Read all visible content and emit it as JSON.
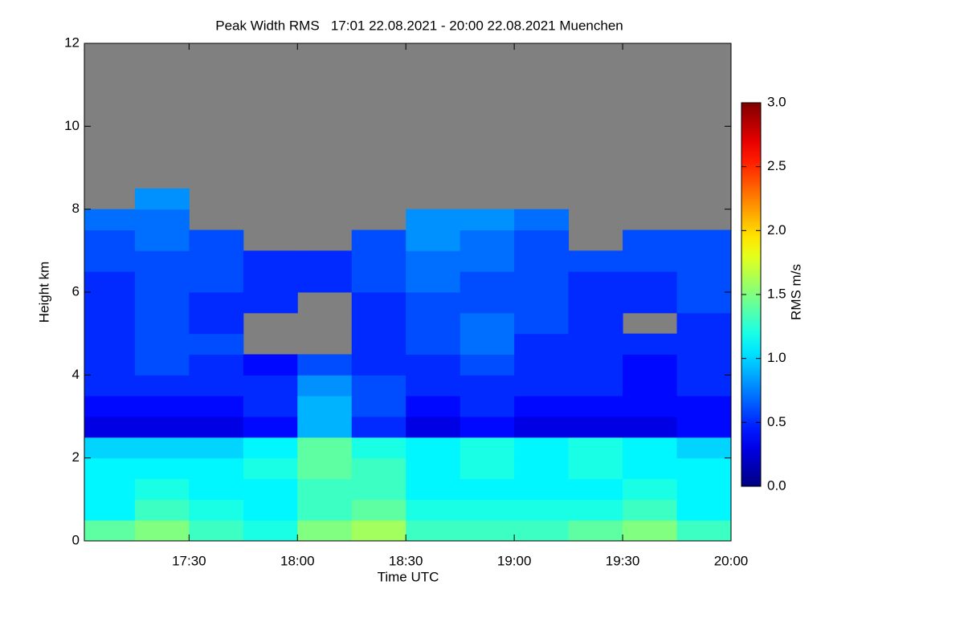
{
  "chart_data": {
    "type": "heatmap",
    "title": "Peak Width RMS   17:01 22.08.2021 - 20:00 22.08.2021 Muenchen",
    "xlabel": "Time UTC",
    "ylabel": "Height km",
    "colorbar_label": "RMS m/s",
    "colormap": "jet",
    "missing_color": "#808080",
    "xlim": [
      17.017,
      20.0
    ],
    "xticks": [
      {
        "value": 17.5,
        "label": "17:30"
      },
      {
        "value": 18.0,
        "label": "18:00"
      },
      {
        "value": 18.5,
        "label": "18:30"
      },
      {
        "value": 19.0,
        "label": "19:00"
      },
      {
        "value": 19.5,
        "label": "19:30"
      },
      {
        "value": 20.0,
        "label": "20:00"
      }
    ],
    "ylim": [
      0,
      12
    ],
    "yticks": [
      0,
      2,
      4,
      6,
      8,
      10,
      12
    ],
    "clim": [
      0,
      3
    ],
    "cticks": [
      {
        "value": 0,
        "label": "0.0"
      },
      0.5,
      {
        "value": 1,
        "label": "1.0"
      },
      1.5,
      {
        "value": 2,
        "label": "2.0"
      },
      2.5,
      {
        "value": 3,
        "label": "3.0"
      }
    ],
    "xbins": [
      17.017,
      17.25,
      17.5,
      17.75,
      18.0,
      18.25,
      18.5,
      18.75,
      19.0,
      19.25,
      19.5,
      19.75,
      20.0
    ],
    "ybins": [
      0,
      0.5,
      1,
      1.5,
      2,
      2.5,
      3,
      3.5,
      4,
      4.5,
      5,
      5.5,
      6,
      6.5,
      7,
      7.5,
      8,
      8.5,
      9,
      9.5,
      10,
      10.5,
      11,
      11.5,
      12
    ],
    "z": [
      [
        1.4,
        1.5,
        1.3,
        1.2,
        1.5,
        1.6,
        1.3,
        1.3,
        1.3,
        1.4,
        1.5,
        1.3
      ],
      [
        1.1,
        1.3,
        1.2,
        1.1,
        1.3,
        1.4,
        1.2,
        1.2,
        1.2,
        1.2,
        1.3,
        1.1
      ],
      [
        1.1,
        1.2,
        1.1,
        1.1,
        1.3,
        1.3,
        1.1,
        1.1,
        1.1,
        1.1,
        1.2,
        1.1
      ],
      [
        1.1,
        1.1,
        1.1,
        1.2,
        1.4,
        1.3,
        1.1,
        1.2,
        1.1,
        1.2,
        1.1,
        1.1
      ],
      [
        1.0,
        1.0,
        1.0,
        1.1,
        1.4,
        1.2,
        1.1,
        1.2,
        1.1,
        1.2,
        1.1,
        1.0
      ],
      [
        0.3,
        0.3,
        0.3,
        0.4,
        0.9,
        0.5,
        0.3,
        0.4,
        0.3,
        0.3,
        0.3,
        0.4
      ],
      [
        0.4,
        0.4,
        0.4,
        0.5,
        0.9,
        0.6,
        0.4,
        0.5,
        0.4,
        0.4,
        0.4,
        0.4
      ],
      [
        0.5,
        0.5,
        0.5,
        0.5,
        0.8,
        0.6,
        0.5,
        0.5,
        0.5,
        0.5,
        0.4,
        0.5
      ],
      [
        0.5,
        0.6,
        0.5,
        0.4,
        0.6,
        0.5,
        0.5,
        0.6,
        0.5,
        0.5,
        0.4,
        0.5
      ],
      [
        0.5,
        0.6,
        0.6,
        null,
        null,
        0.5,
        0.6,
        0.7,
        0.5,
        0.5,
        0.5,
        0.5
      ],
      [
        0.5,
        0.6,
        0.5,
        null,
        null,
        0.5,
        0.6,
        0.7,
        0.6,
        0.5,
        null,
        0.5
      ],
      [
        0.5,
        0.6,
        0.5,
        0.5,
        null,
        0.5,
        0.6,
        0.6,
        0.6,
        0.5,
        0.5,
        0.6
      ],
      [
        0.5,
        0.6,
        0.6,
        0.5,
        0.5,
        0.6,
        0.7,
        0.6,
        0.6,
        0.5,
        0.5,
        0.6
      ],
      [
        0.6,
        0.6,
        0.6,
        0.5,
        0.5,
        0.6,
        0.7,
        0.7,
        0.6,
        0.6,
        0.6,
        0.6
      ],
      [
        0.6,
        0.7,
        0.6,
        null,
        null,
        0.6,
        0.8,
        0.7,
        0.6,
        null,
        0.6,
        0.6
      ],
      [
        0.7,
        0.7,
        null,
        null,
        null,
        null,
        0.8,
        0.8,
        0.7,
        null,
        null,
        null
      ],
      [
        null,
        0.8,
        null,
        null,
        null,
        null,
        null,
        null,
        null,
        null,
        null,
        null
      ],
      [
        null,
        null,
        null,
        null,
        null,
        null,
        null,
        null,
        null,
        null,
        null,
        null
      ],
      [
        null,
        null,
        null,
        null,
        null,
        null,
        null,
        null,
        null,
        null,
        null,
        null
      ],
      [
        null,
        null,
        null,
        null,
        null,
        null,
        null,
        null,
        null,
        null,
        null,
        null
      ],
      [
        null,
        null,
        null,
        null,
        null,
        null,
        null,
        null,
        null,
        null,
        null,
        null
      ],
      [
        null,
        null,
        null,
        null,
        null,
        null,
        null,
        null,
        null,
        null,
        null,
        null
      ],
      [
        null,
        null,
        null,
        null,
        null,
        null,
        null,
        null,
        null,
        null,
        null,
        null
      ],
      [
        null,
        null,
        null,
        null,
        null,
        null,
        null,
        null,
        null,
        null,
        null,
        null
      ]
    ]
  }
}
